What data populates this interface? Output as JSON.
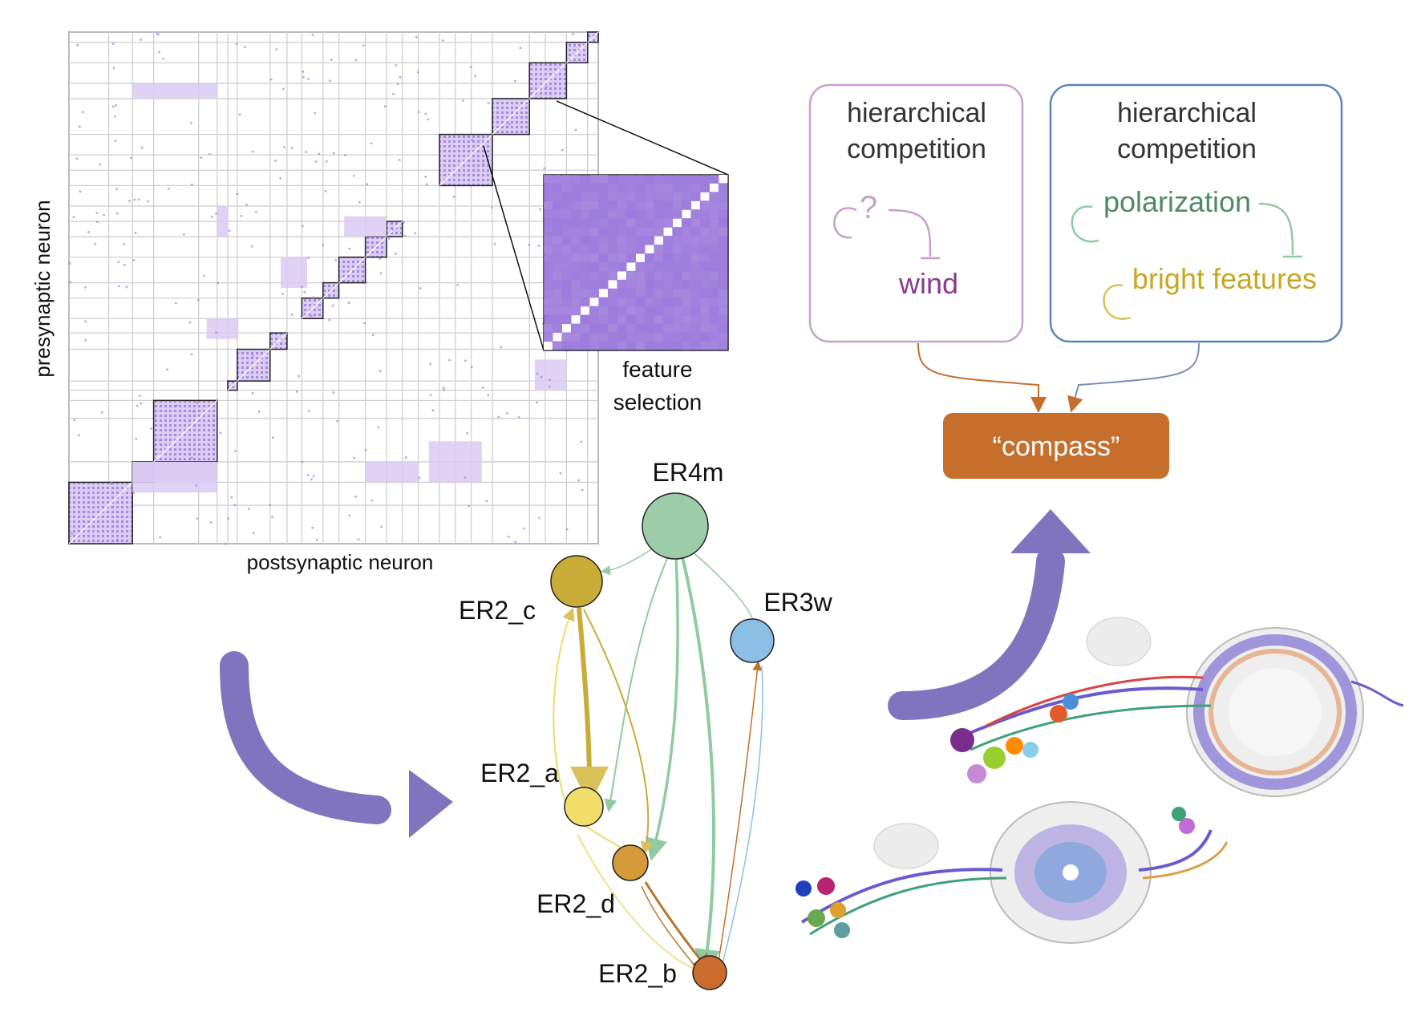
{
  "matrix": {
    "ylabel": "presynaptic neuron",
    "xlabel": "postsynaptic neuron",
    "zoom_label_line1": "feature",
    "zoom_label_line2": "selection",
    "purple": "#8b63d6",
    "light_purple": "#d8c9f1"
  },
  "graph": {
    "nodes": [
      {
        "id": "ER4m",
        "label": "ER4m",
        "color": "#9dcca8"
      },
      {
        "id": "ER2_c",
        "label": "ER2_c",
        "color": "#c9ab37"
      },
      {
        "id": "ER3w",
        "label": "ER3w",
        "color": "#8cbfe6"
      },
      {
        "id": "ER2_a",
        "label": "ER2_a",
        "color": "#f3dd6a"
      },
      {
        "id": "ER2_d",
        "label": "ER2_d",
        "color": "#d59a3a"
      },
      {
        "id": "ER2_b",
        "label": "ER2_b",
        "color": "#cb6b2d"
      }
    ]
  },
  "boxes": {
    "left": {
      "line1": "hierarchical",
      "line2": "competition",
      "self": "?",
      "target": "wind",
      "border": "#c8a0cc",
      "text_color": "#8a3a8f"
    },
    "right": {
      "line1": "hierarchical",
      "line2": "competition",
      "label1": "polarization",
      "label2": "bright features",
      "border": "#5b86b8",
      "green": "#4e8a63",
      "yellow": "#c7a622"
    }
  },
  "compass": {
    "label": "“compass”",
    "color": "#c66e2c"
  },
  "arrow_color": "#7f74bd"
}
